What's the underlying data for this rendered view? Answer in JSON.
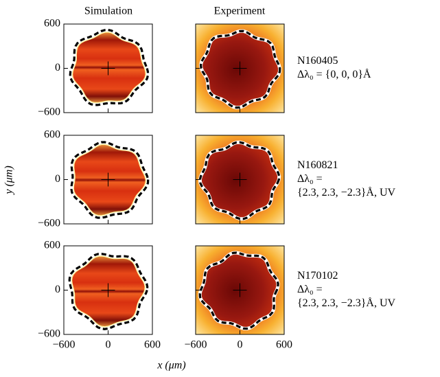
{
  "columns": [
    "Simulation",
    "Experiment"
  ],
  "rows": [
    {
      "shot": "N160405",
      "detuning": [
        "Δλ₀ = {0, 0, 0}Å"
      ]
    },
    {
      "shot": "N160821",
      "detuning": [
        "Δλ₀ =",
        "{2.3, 2.3, −2.3}Å, UV"
      ]
    },
    {
      "shot": "N170102",
      "detuning": [
        "Δλ₀ =",
        "{2.3, 2.3, −2.3}Å, UV"
      ]
    }
  ],
  "axes": {
    "xlabel": "x (μm)",
    "ylabel": "y (μm)",
    "xlim": [
      -600,
      600
    ],
    "ylim": [
      -600,
      600
    ],
    "xticks": [
      {
        "value": -600,
        "label": "−600"
      },
      0,
      600
    ],
    "yticks": [
      {
        "value": -600,
        "label": "−600"
      },
      0,
      600
    ]
  }
}
